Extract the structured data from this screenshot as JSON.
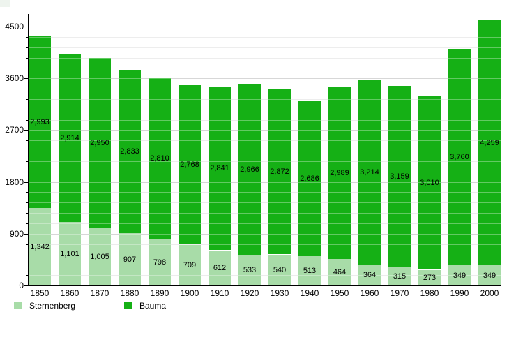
{
  "chart_data": {
    "type": "bar",
    "stacked": true,
    "title": "",
    "xlabel": "",
    "ylabel": "",
    "categories": [
      "1850",
      "1860",
      "1870",
      "1880",
      "1890",
      "1900",
      "1910",
      "1920",
      "1930",
      "1940",
      "1950",
      "1960",
      "1970",
      "1980",
      "1990",
      "2000"
    ],
    "series": [
      {
        "name": "Sternenberg",
        "color": "#a8dca8",
        "values": [
          1342,
          1101,
          1005,
          907,
          798,
          709,
          612,
          533,
          540,
          513,
          464,
          364,
          315,
          273,
          349,
          349
        ]
      },
      {
        "name": "Bauma",
        "color": "#15b015",
        "values": [
          2993,
          2914,
          2950,
          2833,
          2810,
          2768,
          2841,
          2966,
          2872,
          2686,
          2989,
          3214,
          3159,
          3010,
          3760,
          4259
        ]
      }
    ],
    "y_ticks": [
      0,
      900,
      1800,
      2700,
      3600,
      4500
    ],
    "y_minor_step": 180,
    "ylim": [
      0,
      4718
    ],
    "grid": true,
    "bar_value_labels": true,
    "legend_position": "bottom"
  },
  "colors": {
    "axis": "#000000",
    "grid_major": "#c3c3c3",
    "grid_minor": "#e4e4e4",
    "background": "#ffffff"
  }
}
